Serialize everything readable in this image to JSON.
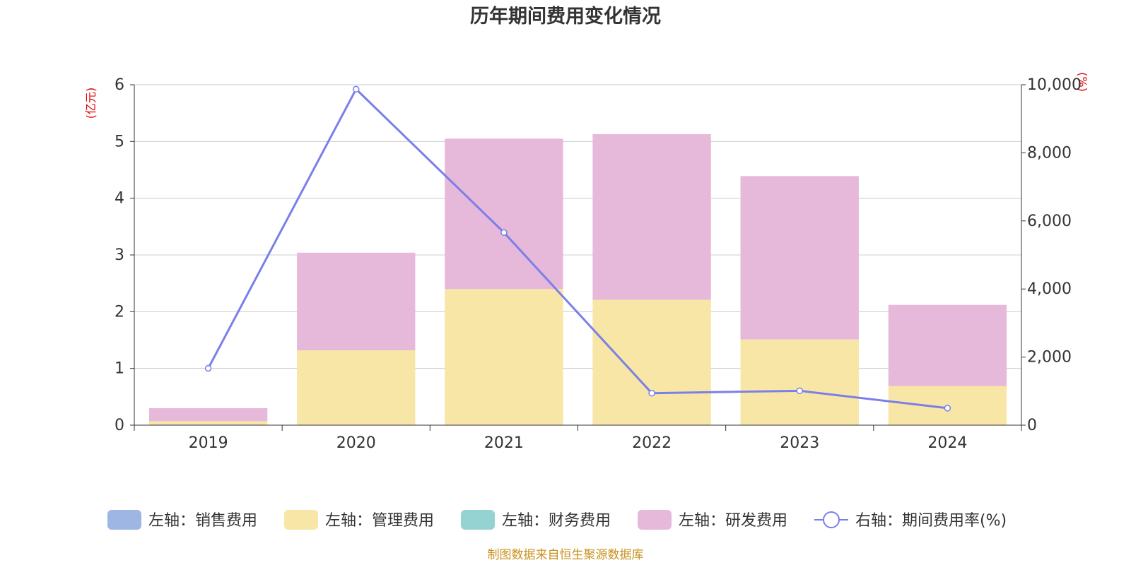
{
  "title": "历年期间费用变化情况",
  "left_axis_unit": "(亿元)",
  "right_axis_unit": "(%)",
  "source": "制图数据来自恒生聚源数据库",
  "colors": {
    "sales": "#9db6e3",
    "admin": "#f7e6a6",
    "finance": "#95d3d3",
    "rd": "#e6b8da",
    "rate": "#7b7fe8"
  },
  "chart_data": {
    "type": "bar",
    "categories": [
      "2019",
      "2020",
      "2021",
      "2022",
      "2023",
      "2024"
    ],
    "ylim": [
      0,
      6
    ],
    "yticks": [
      0,
      1,
      2,
      3,
      4,
      5,
      6
    ],
    "y2lim": [
      0,
      10000
    ],
    "y2ticks": [
      "0",
      "2,000",
      "4,000",
      "6,000",
      "8,000",
      "10,000"
    ],
    "series": [
      {
        "name": "左轴：销售费用",
        "axis": "left",
        "kind": "bar",
        "values": [
          0.01,
          0,
          0,
          0,
          0,
          0
        ]
      },
      {
        "name": "左轴：管理费用",
        "axis": "left",
        "kind": "bar",
        "values": [
          0.06,
          1.32,
          2.4,
          2.21,
          1.51,
          0.69
        ]
      },
      {
        "name": "左轴：财务费用",
        "axis": "left",
        "kind": "bar",
        "values": [
          0,
          0,
          0,
          0,
          0,
          0
        ]
      },
      {
        "name": "左轴：研发费用",
        "axis": "left",
        "kind": "bar",
        "values": [
          0.23,
          1.72,
          2.65,
          2.92,
          2.88,
          1.43
        ]
      },
      {
        "name": "右轴：期间费用率(%)",
        "axis": "right",
        "kind": "line",
        "values": [
          1670,
          9870,
          5660,
          940,
          1010,
          500
        ]
      }
    ],
    "legend": "bottom"
  }
}
